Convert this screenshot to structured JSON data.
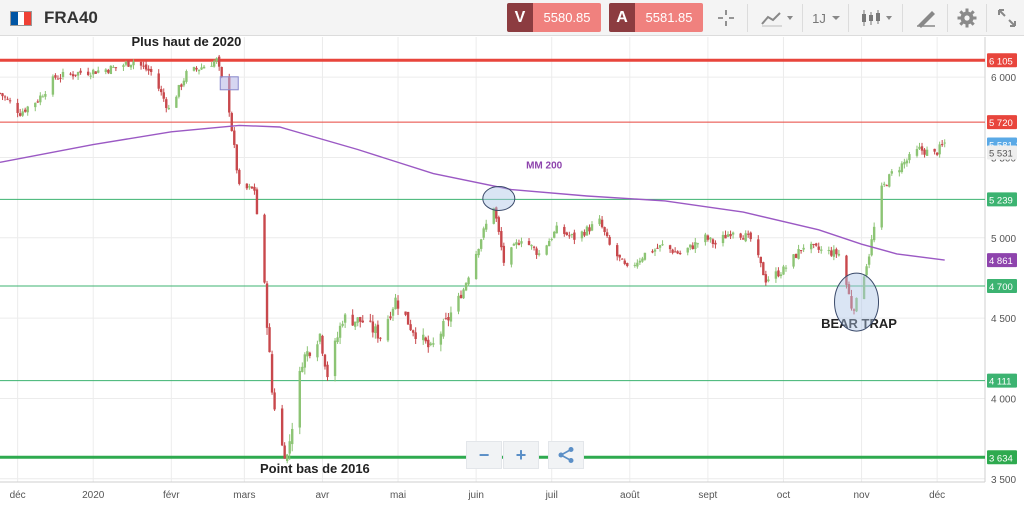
{
  "header": {
    "symbol": "FRA40",
    "sell": {
      "label": "V",
      "price": "5580.85"
    },
    "buy": {
      "label": "A",
      "price": "5581.85"
    },
    "timeframe": "1J",
    "icons": [
      "crosshair-icon",
      "chart-type-icon",
      "candlestick-icon",
      "draw-icon",
      "settings-icon",
      "fullscreen-icon"
    ],
    "flag_colors": [
      "#0055a4",
      "#ffffff",
      "#ef4135"
    ]
  },
  "zoom_controls": {
    "minus": "−",
    "plus": "+",
    "share": "share-icon"
  },
  "chart_data": {
    "type": "candlestick",
    "title": "",
    "xlabel": "",
    "ylabel": "",
    "ylim": [
      3480,
      6250
    ],
    "y_ticks": [
      3500,
      4000,
      4500,
      5000,
      5500,
      6000
    ],
    "y_tick_labels": [
      "3 500",
      "4 000",
      "4 500",
      "5 000",
      "5 500",
      "6 000"
    ],
    "x_ticks": [
      {
        "date": "2019-12-02",
        "label": "déc"
      },
      {
        "date": "2020-01-01",
        "label": "2020"
      },
      {
        "date": "2020-02-01",
        "label": "févr"
      },
      {
        "date": "2020-03-01",
        "label": "mars"
      },
      {
        "date": "2020-04-01",
        "label": "avr"
      },
      {
        "date": "2020-05-01",
        "label": "mai"
      },
      {
        "date": "2020-06-01",
        "label": "juin"
      },
      {
        "date": "2020-07-01",
        "label": "juil"
      },
      {
        "date": "2020-08-01",
        "label": "août"
      },
      {
        "date": "2020-09-01",
        "label": "sept"
      },
      {
        "date": "2020-10-01",
        "label": "oct"
      },
      {
        "date": "2020-11-01",
        "label": "nov"
      },
      {
        "date": "2020-12-01",
        "label": "déc"
      }
    ],
    "x_range": [
      "2019-11-25",
      "2020-12-20"
    ],
    "up_color": "#8cc474",
    "down_color": "#c8484c",
    "price_path": [
      [
        "2019-11-25",
        5900
      ],
      [
        "2019-12-03",
        5780
      ],
      [
        "2019-12-10",
        5860
      ],
      [
        "2019-12-17",
        6000
      ],
      [
        "2019-12-27",
        6030
      ],
      [
        "2020-01-03",
        6040
      ],
      [
        "2020-01-10",
        6060
      ],
      [
        "2020-01-17",
        6100
      ],
      [
        "2020-01-24",
        6030
      ],
      [
        "2020-01-31",
        5800
      ],
      [
        "2020-02-07",
        6020
      ],
      [
        "2020-02-14",
        6070
      ],
      [
        "2020-02-19",
        6105
      ],
      [
        "2020-02-24",
        5800
      ],
      [
        "2020-02-28",
        5310
      ],
      [
        "2020-03-05",
        5300
      ],
      [
        "2020-03-09",
        4700
      ],
      [
        "2020-03-12",
        4040
      ],
      [
        "2020-03-16",
        3700
      ],
      [
        "2020-03-18",
        3640
      ],
      [
        "2020-03-24",
        4240
      ],
      [
        "2020-03-31",
        4400
      ],
      [
        "2020-04-03",
        4150
      ],
      [
        "2020-04-09",
        4500
      ],
      [
        "2020-04-17",
        4480
      ],
      [
        "2020-04-24",
        4390
      ],
      [
        "2020-04-30",
        4620
      ],
      [
        "2020-05-06",
        4450
      ],
      [
        "2020-05-14",
        4300
      ],
      [
        "2020-05-20",
        4470
      ],
      [
        "2020-05-27",
        4680
      ],
      [
        "2020-06-03",
        5000
      ],
      [
        "2020-06-08",
        5200
      ],
      [
        "2020-06-12",
        4850
      ],
      [
        "2020-06-19",
        5000
      ],
      [
        "2020-06-26",
        4900
      ],
      [
        "2020-07-03",
        5050
      ],
      [
        "2020-07-10",
        5000
      ],
      [
        "2020-07-20",
        5100
      ],
      [
        "2020-07-24",
        4950
      ],
      [
        "2020-07-31",
        4800
      ],
      [
        "2020-08-07",
        4900
      ],
      [
        "2020-08-14",
        4950
      ],
      [
        "2020-08-21",
        4900
      ],
      [
        "2020-08-31",
        5000
      ],
      [
        "2020-09-04",
        4960
      ],
      [
        "2020-09-11",
        5050
      ],
      [
        "2020-09-18",
        4990
      ],
      [
        "2020-09-24",
        4740
      ],
      [
        "2020-10-01",
        4800
      ],
      [
        "2020-10-09",
        4950
      ],
      [
        "2020-10-16",
        4920
      ],
      [
        "2020-10-23",
        4900
      ],
      [
        "2020-10-28",
        4580
      ],
      [
        "2020-10-30",
        4600
      ],
      [
        "2020-11-04",
        4900
      ],
      [
        "2020-11-09",
        5300
      ],
      [
        "2020-11-13",
        5400
      ],
      [
        "2020-11-24",
        5550
      ],
      [
        "2020-11-30",
        5520
      ],
      [
        "2020-12-04",
        5590
      ]
    ],
    "moving_average": {
      "name": "MM 200",
      "color": "#9b59c4",
      "points": [
        [
          "2019-11-25",
          5470
        ],
        [
          "2020-01-01",
          5580
        ],
        [
          "2020-02-01",
          5660
        ],
        [
          "2020-02-28",
          5700
        ],
        [
          "2020-03-15",
          5690
        ],
        [
          "2020-04-15",
          5550
        ],
        [
          "2020-05-15",
          5400
        ],
        [
          "2020-06-15",
          5300
        ],
        [
          "2020-07-15",
          5260
        ],
        [
          "2020-08-15",
          5230
        ],
        [
          "2020-09-15",
          5160
        ],
        [
          "2020-10-15",
          5050
        ],
        [
          "2020-11-01",
          4960
        ],
        [
          "2020-11-15",
          4900
        ],
        [
          "2020-12-04",
          4861
        ]
      ]
    },
    "horizontal_lines": [
      {
        "value": 6105,
        "label": "6 105",
        "color": "#e8453c",
        "width": 3
      },
      {
        "value": 5720,
        "label": "5 720",
        "color": "#e8453c",
        "width": 1
      },
      {
        "value": 5239,
        "label": "5 239",
        "color": "#3cb371",
        "width": 1
      },
      {
        "value": 4700,
        "label": "4 700",
        "color": "#3cb371",
        "width": 1
      },
      {
        "value": 4111,
        "label": "4 111",
        "color": "#3cb371",
        "width": 1
      },
      {
        "value": 3634,
        "label": "3 634",
        "color": "#2eaa4f",
        "width": 3
      }
    ],
    "price_tags": [
      {
        "value": 5581.15,
        "label": "5 581,15",
        "color": "#5aa9e6"
      },
      {
        "value": 5531,
        "label": "5 531",
        "color": "#eeeeee",
        "text_color": "#555"
      },
      {
        "value": 4861,
        "label": "4 861",
        "color": "#8e44ad"
      }
    ],
    "annotations": [
      {
        "text": "Plus haut de 2020",
        "date": "2020-02-07",
        "value": 6195
      },
      {
        "text": "Point bas de 2016",
        "date": "2020-03-29",
        "value": 3535
      },
      {
        "text": "MM 200",
        "date": "2020-06-28",
        "value": 5430,
        "color": "#8e44ad"
      },
      {
        "text": "BEAR TRAP",
        "date": "2020-10-31",
        "value": 4440
      }
    ],
    "ellipses": [
      {
        "date": "2020-06-10",
        "value": 5245
      },
      {
        "date": "2020-10-30",
        "value": 4600
      }
    ],
    "marker_box": {
      "date": "2020-02-24",
      "value": 5965
    }
  }
}
